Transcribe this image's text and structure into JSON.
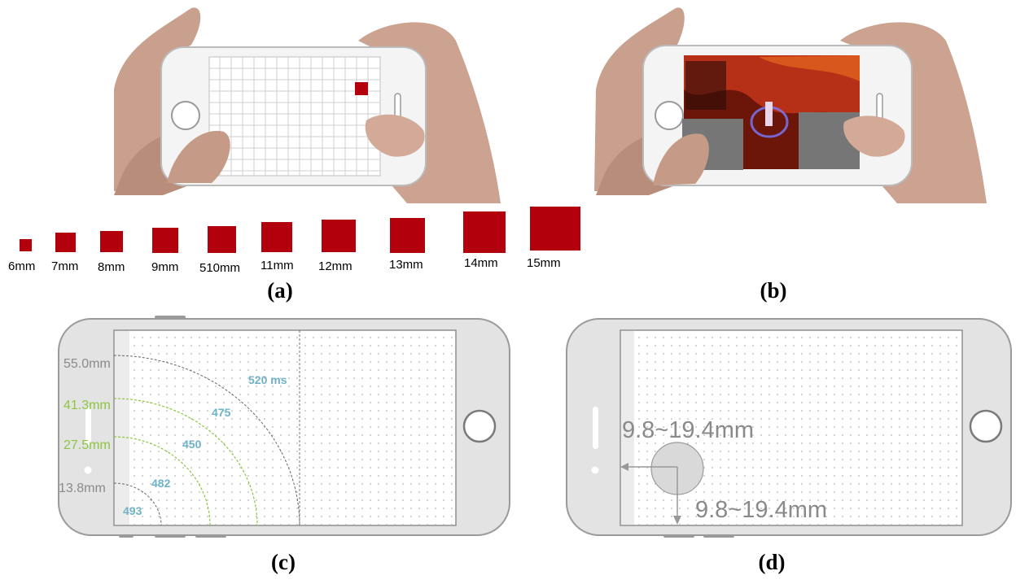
{
  "panel_a": {
    "label": "(a)",
    "sizes": [
      "6mm",
      "7mm",
      "8mm",
      "9mm",
      "510mm",
      "11mm",
      "12mm",
      "13mm",
      "14mm",
      "15mm"
    ]
  },
  "panel_b": {
    "label": "(b)"
  },
  "panel_c": {
    "label": "(c)",
    "radii": [
      "55.0mm",
      "41.3mm",
      "27.5mm",
      "13.8mm"
    ],
    "times": [
      "520 ms",
      "475",
      "450",
      "482",
      "493"
    ]
  },
  "panel_d": {
    "label": "(d)",
    "range_vertical": "9.8~19.4mm",
    "range_horizontal": "9.8~19.4mm"
  },
  "colors": {
    "target_red": "#b3000d",
    "gray_text": "#8a8a8a",
    "green_text": "#8cc63f",
    "blue_text": "#6fb2c7",
    "phone_body": "#e3e3e3",
    "occluder_gray": "#767676"
  }
}
